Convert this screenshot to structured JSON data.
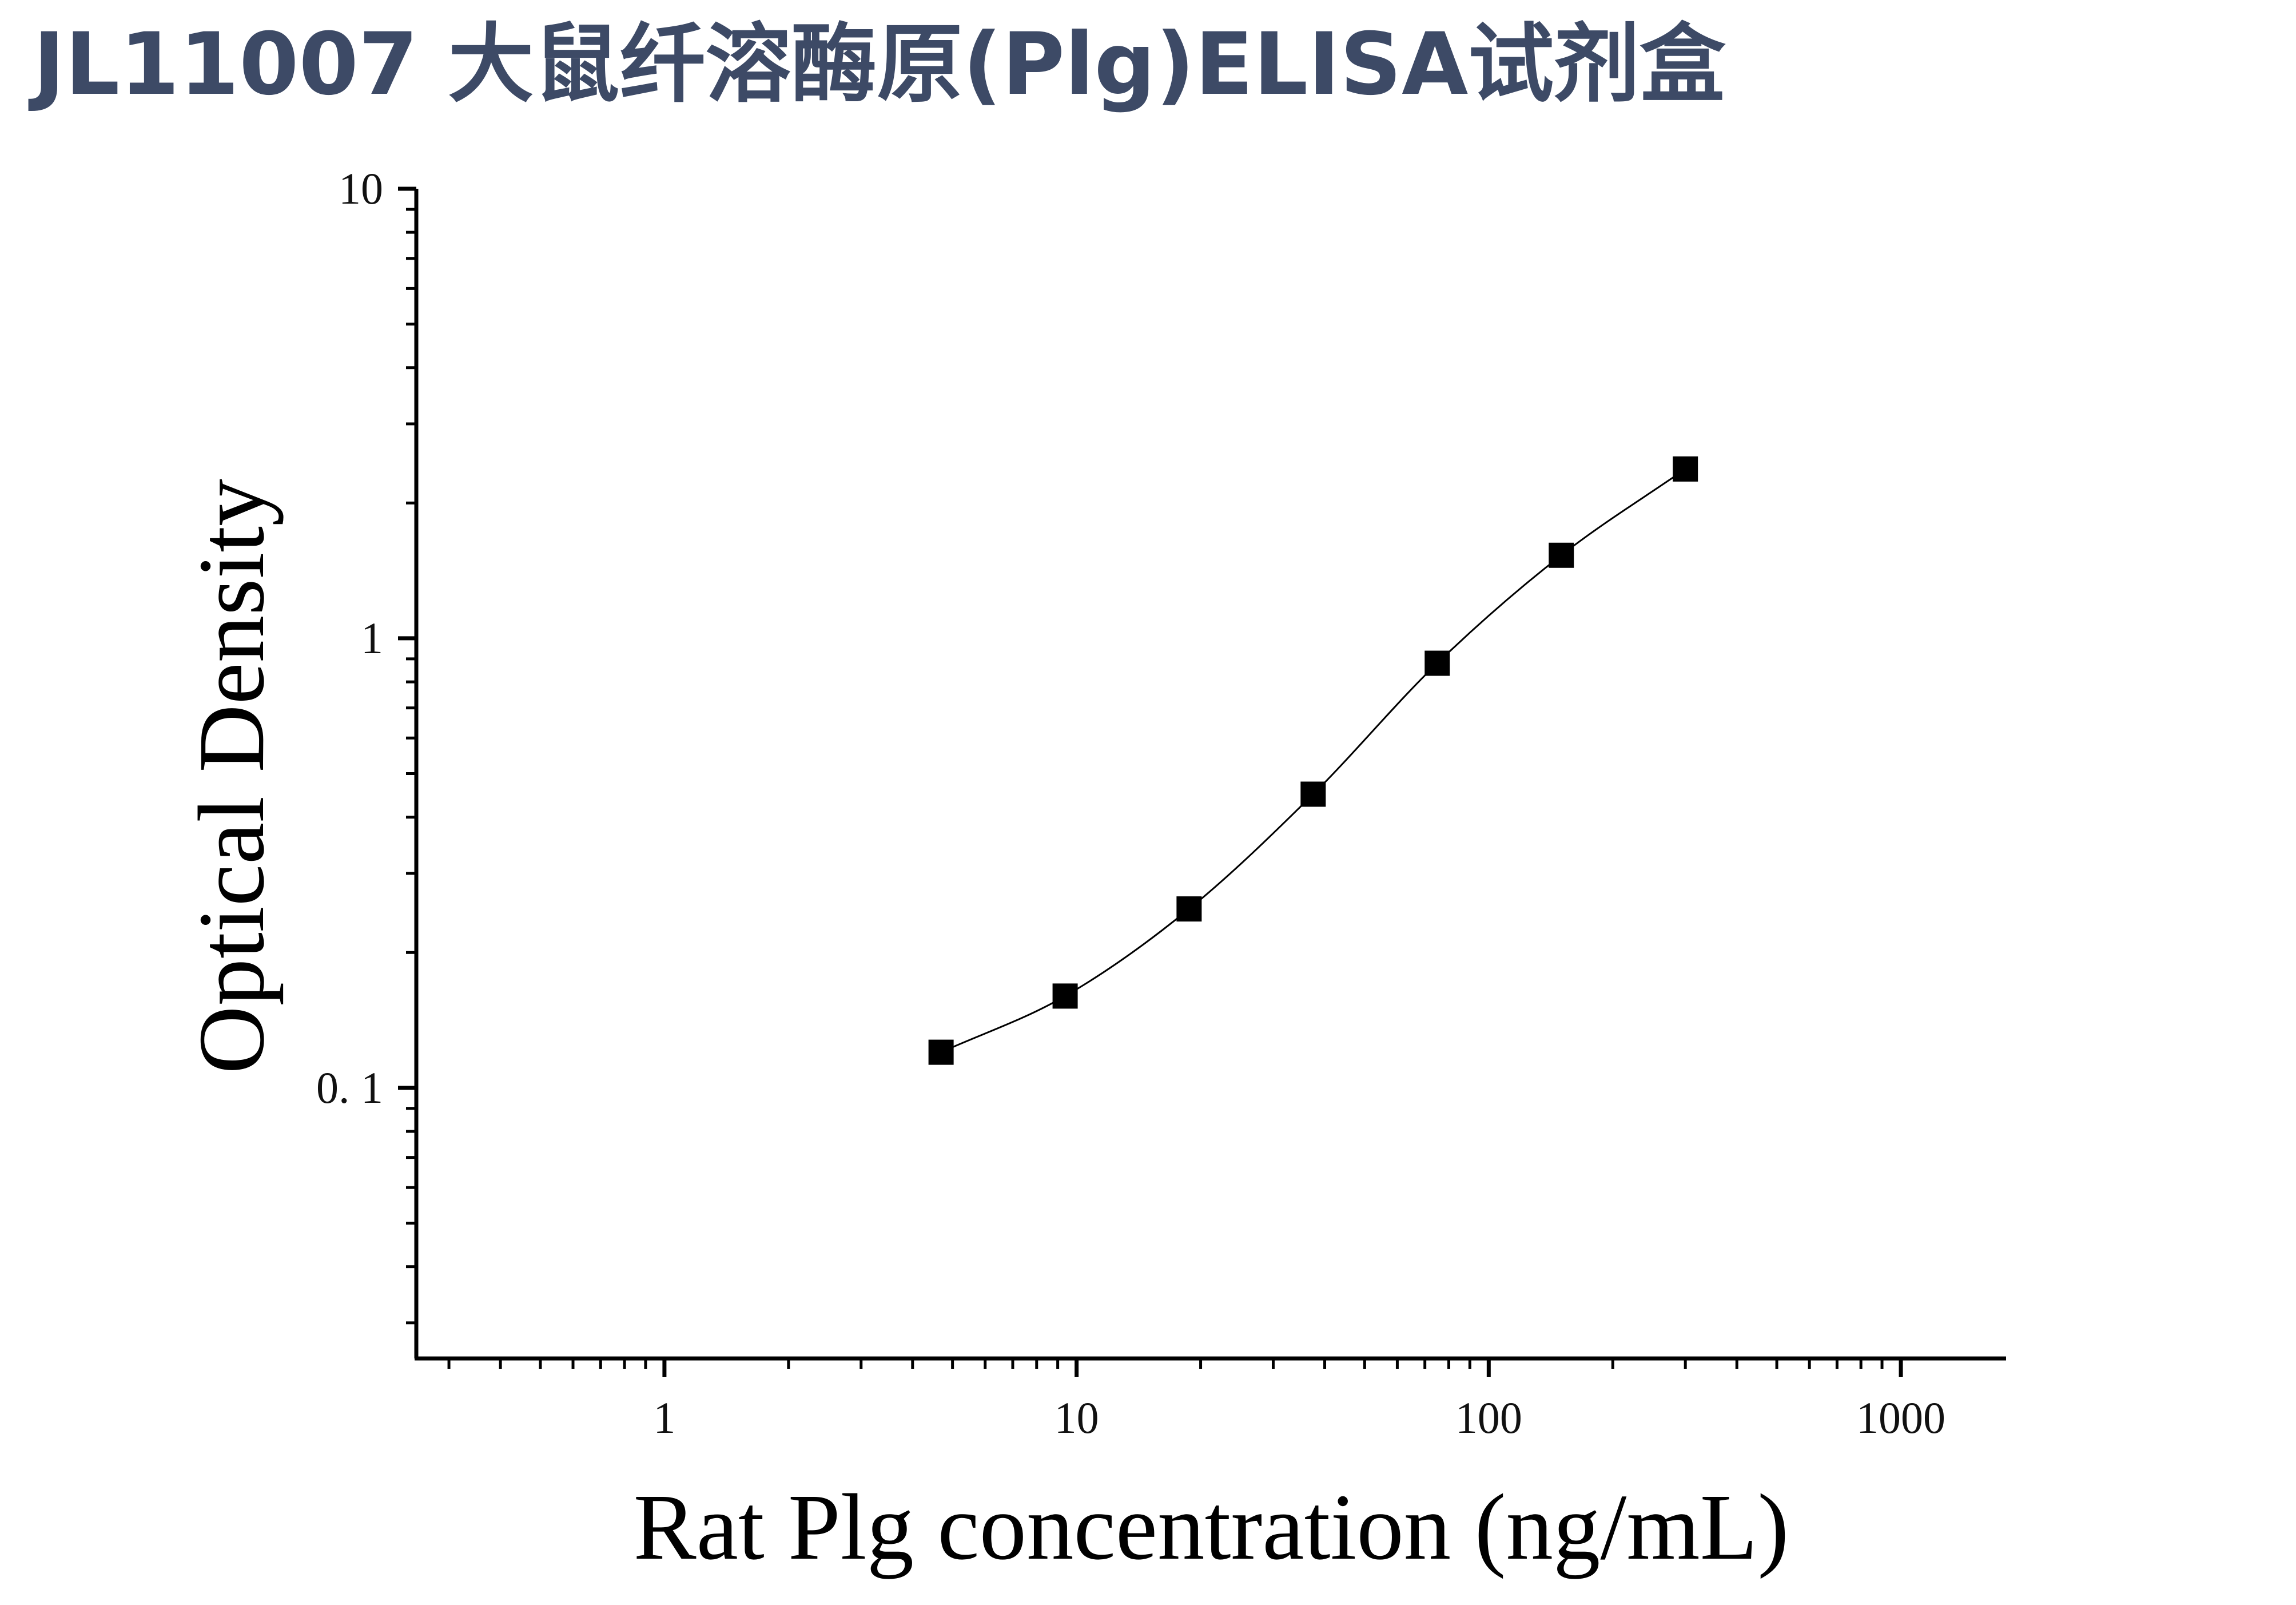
{
  "page_title": "JL11007 大鼠纤溶酶原(Plg)ELISA试剂盒",
  "chart_data": {
    "type": "scatter",
    "title": "",
    "xlabel": "Rat Plg concentration (ng/mL)",
    "ylabel": "Optical Density",
    "x_scale": "log",
    "y_scale": "log",
    "xlim": [
      0.25,
      1800
    ],
    "ylim": [
      0.025,
      10
    ],
    "x_ticks": [
      1,
      10,
      100,
      1000
    ],
    "x_tick_labels": [
      "1",
      "10",
      "100",
      "1000"
    ],
    "y_ticks": [
      0.1,
      1,
      10
    ],
    "y_tick_labels": [
      "0. 1",
      "1",
      "10"
    ],
    "grid": false,
    "legend": false,
    "fit_curve": true,
    "series": [
      {
        "x": [
          4.69,
          9.38,
          18.75,
          37.5,
          75,
          150,
          300
        ],
        "y": [
          0.12,
          0.16,
          0.25,
          0.45,
          0.88,
          1.53,
          2.38
        ]
      }
    ],
    "colors": {
      "marker": "#000000",
      "curve": "#000000",
      "axis": "#000000",
      "title": "#3d4a66"
    }
  }
}
